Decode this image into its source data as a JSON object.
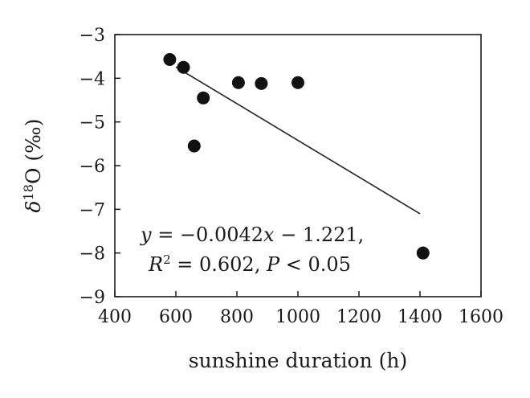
{
  "chart_data": {
    "type": "scatter",
    "xlabel": "sunshine duration (h)",
    "ylabel": {
      "prefix": "δ",
      "superscript": "18",
      "main": "O (‰)"
    },
    "xlim": [
      400,
      1600
    ],
    "ylim": [
      -9,
      -3
    ],
    "xticks": [
      400,
      600,
      800,
      1000,
      1200,
      1400,
      1600
    ],
    "yticks": [
      -3,
      -4,
      -5,
      -6,
      -7,
      -8,
      -9
    ],
    "xtick_labels": [
      "400",
      "600",
      "800",
      "1000",
      "1200",
      "1400",
      "1600"
    ],
    "ytick_labels": [
      "−3",
      "−4",
      "−5",
      "−6",
      "−7",
      "−8",
      "−9"
    ],
    "grid": false,
    "points": [
      {
        "x": 580,
        "y": -3.57
      },
      {
        "x": 625,
        "y": -3.75
      },
      {
        "x": 660,
        "y": -5.55
      },
      {
        "x": 690,
        "y": -4.45
      },
      {
        "x": 805,
        "y": -4.1
      },
      {
        "x": 880,
        "y": -4.12
      },
      {
        "x": 1000,
        "y": -4.1
      },
      {
        "x": 1410,
        "y": -8.0
      }
    ],
    "trendline": {
      "x_start": 600,
      "x_end": 1400,
      "slope": -0.0042,
      "intercept": -1.221
    },
    "annotation": {
      "line1": {
        "y": "y",
        "eq": " = −0.0042",
        "x": "x",
        "rest": " − 1.221,"
      },
      "line2": {
        "R": "R",
        "sup": "2",
        "mid": " = 0.602, ",
        "P": "P",
        "rest": " < 0.05"
      }
    },
    "colors": {
      "points": "#111111",
      "line": "#222222",
      "axis": "#1a1a1a"
    }
  }
}
